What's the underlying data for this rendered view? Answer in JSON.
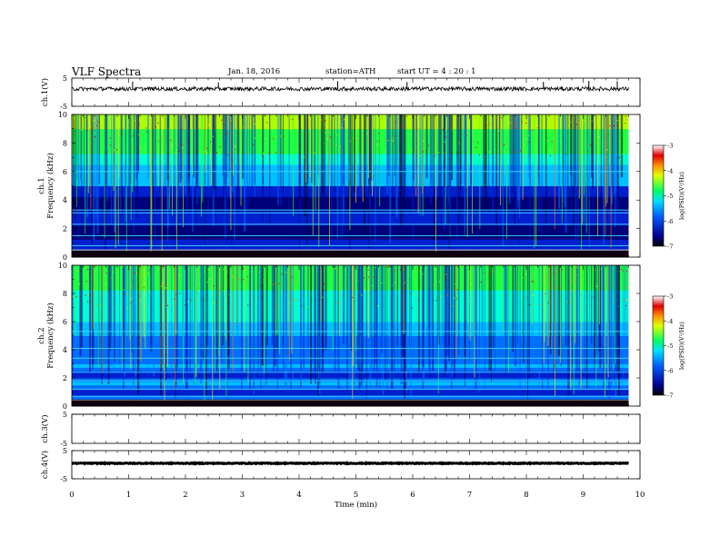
{
  "header": {
    "title": "VLF Spectra",
    "date": "Jan. 18, 2016",
    "station": "station=ATH",
    "start": "start UT = 4 : 20 : 1"
  },
  "chart_data": [
    {
      "type": "line",
      "panel": "ch1-waveform",
      "ylabel": "ch.1(V)",
      "yticks": [
        "5",
        "-5"
      ],
      "ylim": [
        -5,
        5
      ],
      "xlim": [
        0,
        10
      ],
      "x_end": 9.8,
      "baseline_y": 1.2,
      "spikes": [
        {
          "x": 1.07,
          "y": 3.8
        },
        {
          "x": 2.58,
          "y": 3.5
        },
        {
          "x": 4.68,
          "y": 3.9
        },
        {
          "x": 5.9,
          "y": 3.6
        },
        {
          "x": 8.3,
          "y": 3.7
        },
        {
          "x": 9.1,
          "y": 4.0
        },
        {
          "x": 9.6,
          "y": 3.9
        }
      ],
      "color": "#000000"
    },
    {
      "type": "heatmap",
      "panel": "ch1-spectrogram",
      "ylabel": "ch.1 Frequency (kHz)",
      "yticks": [
        "10",
        "8",
        "6",
        "4",
        "2",
        "0"
      ],
      "ylim": [
        0,
        10
      ],
      "xlim": [
        0,
        10
      ],
      "x_end": 9.8,
      "colorbar": {
        "label": "log(PSD)(V²/Hz)",
        "ticks": [
          "-3",
          "-4",
          "-5",
          "-6",
          "-7"
        ],
        "range": [
          -7,
          -3
        ]
      },
      "colormap": [
        "#000033",
        "#000090",
        "#0040ff",
        "#00c8ff",
        "#00ff80",
        "#c8ff00",
        "#ffd800",
        "#ff5000",
        "#c00000",
        "#ffffff"
      ]
    },
    {
      "type": "heatmap",
      "panel": "ch2-spectrogram",
      "ylabel": "ch.2 Frequency (kHz)",
      "yticks": [
        "10",
        "8",
        "6",
        "4",
        "2",
        "0"
      ],
      "ylim": [
        0,
        10
      ],
      "xlim": [
        0,
        10
      ],
      "x_end": 9.8,
      "colorbar": {
        "label": "log(PSD)(V²/Hz)",
        "ticks": [
          "-3",
          "-4",
          "-5",
          "-6",
          "-7"
        ],
        "range": [
          -7,
          -3
        ]
      }
    },
    {
      "type": "line",
      "panel": "ch3-waveform",
      "ylabel": "ch.3(V)",
      "yticks": [
        "5",
        "-5"
      ],
      "ylim": [
        -5,
        5
      ],
      "xlim": [
        0,
        10
      ],
      "x_end": 9.8,
      "baseline_y": 5,
      "color": "#000000"
    },
    {
      "type": "line",
      "panel": "ch4-waveform",
      "ylabel": "ch.4(V)",
      "yticks": [
        "5",
        "-5"
      ],
      "ylim": [
        -5,
        5
      ],
      "xlim": [
        0,
        10
      ],
      "x_end": 9.8,
      "baseline_y": 0.5,
      "color": "#000000"
    }
  ],
  "xaxis": {
    "label": "Time (min)",
    "ticks": [
      "0",
      "1",
      "2",
      "3",
      "4",
      "5",
      "6",
      "7",
      "8",
      "9",
      "10"
    ]
  }
}
